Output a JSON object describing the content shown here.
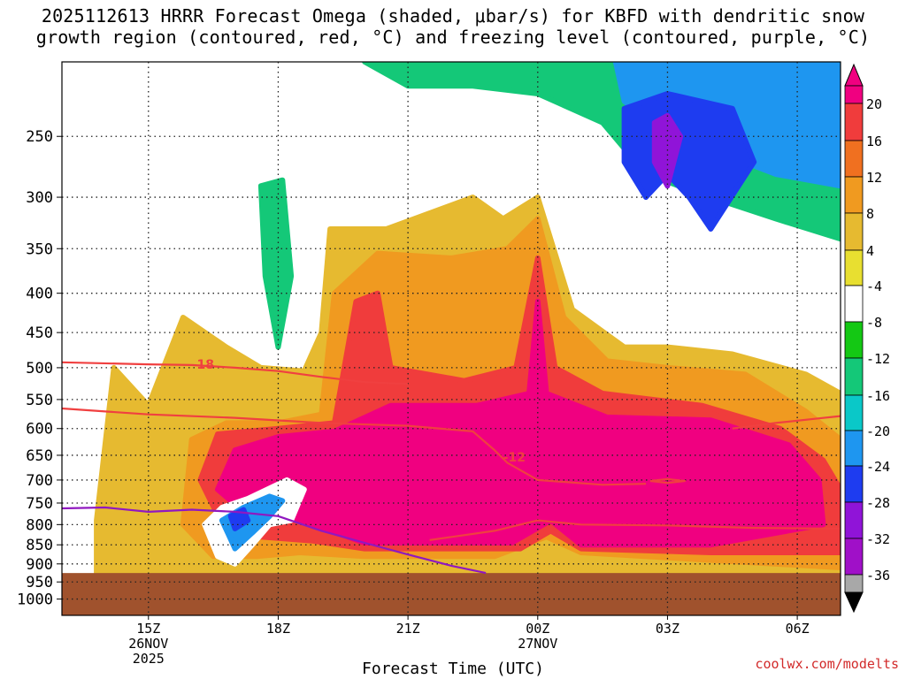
{
  "title_line1": "2025112613 HRRR Forecast Omega (shaded, μbar/s) for KBFD with dendritic snow",
  "title_line2": "growth region (contoured, red, °C) and freezing level (contoured, purple, °C)",
  "credit": "coolwx.com/modelts",
  "colors": {
    "ground": "#a0522d",
    "dendritic_contour": "#f04040",
    "freezing_contour": "#9018c0",
    "grid": "#222222"
  },
  "chart_data": {
    "type": "heatmap",
    "xlabel": "Forecast Time (UTC)",
    "ylabel": "",
    "y_scale": "log-pressure",
    "y_range": [
      1050,
      200
    ],
    "y_unit": "hPa",
    "x_range_hours": [
      13,
      31
    ],
    "y_ticks": [
      250,
      300,
      350,
      400,
      450,
      500,
      550,
      600,
      650,
      700,
      750,
      800,
      850,
      900,
      950,
      1000
    ],
    "x_ticks": [
      {
        "hour": 15,
        "label": "15Z",
        "sub": [
          "26NOV",
          "2025"
        ]
      },
      {
        "hour": 18,
        "label": "18Z",
        "sub": []
      },
      {
        "hour": 21,
        "label": "21Z",
        "sub": []
      },
      {
        "hour": 24,
        "label": "00Z",
        "sub": [
          "27NOV"
        ]
      },
      {
        "hour": 27,
        "label": "03Z",
        "sub": []
      },
      {
        "hour": 30,
        "label": "06Z",
        "sub": []
      }
    ],
    "colorbar": {
      "labels": [
        "20",
        "16",
        "12",
        "8",
        "4",
        "-4",
        "-8",
        "-12",
        "-16",
        "-20",
        "-24",
        "-28",
        "-32",
        "-36"
      ],
      "colors": [
        "#f00080",
        "#f03c3c",
        "#f07020",
        "#f09a20",
        "#e6ba30",
        "#e8df30",
        "#ffffff",
        "#14c814",
        "#14c878",
        "#0ac8c8",
        "#1e96f0",
        "#1e3cf0",
        "#9014d8",
        "#a010c8",
        "#a8a8a8",
        "#000000"
      ],
      "unit": "μbar/s"
    },
    "surface_pressure": 925,
    "contours": [
      {
        "name": "-18",
        "label": "-18",
        "color": "red",
        "points": [
          [
            13,
            492
          ],
          [
            15,
            495
          ],
          [
            16,
            496
          ],
          [
            17,
            500
          ],
          [
            18,
            505
          ],
          [
            19,
            514
          ],
          [
            20,
            522
          ],
          [
            21,
            525
          ]
        ]
      },
      {
        "name": "-12",
        "label": "-12",
        "color": "red",
        "points": [
          [
            13,
            565
          ],
          [
            14,
            570
          ],
          [
            15,
            575
          ],
          [
            17,
            581
          ],
          [
            19,
            590
          ],
          [
            21,
            595
          ],
          [
            22.5,
            605
          ],
          [
            23,
            640
          ],
          [
            23.3,
            665
          ],
          [
            24,
            700
          ],
          [
            25.5,
            710
          ],
          [
            26.5,
            708
          ]
        ]
      },
      {
        "name": "-12 (east)",
        "label": "",
        "color": "red",
        "points": [
          [
            28.5,
            600
          ],
          [
            29.5,
            590
          ],
          [
            30.5,
            582
          ],
          [
            31,
            578
          ]
        ]
      },
      {
        "name": "-12 (low)",
        "label": "",
        "color": "red",
        "points": [
          [
            21.5,
            838
          ],
          [
            23,
            815
          ],
          [
            24,
            790
          ],
          [
            25,
            800
          ],
          [
            27,
            802
          ],
          [
            29,
            808
          ],
          [
            31,
            810
          ]
        ]
      },
      {
        "name": "-12 (cell)",
        "label": "",
        "color": "red",
        "points": [
          [
            26.6,
            702
          ],
          [
            27,
            698
          ],
          [
            27.4,
            702
          ],
          [
            27,
            706
          ],
          [
            26.6,
            702
          ]
        ]
      },
      {
        "name": "0",
        "label": "",
        "color": "purple",
        "points": [
          [
            13,
            762
          ],
          [
            14,
            760
          ],
          [
            15,
            770
          ],
          [
            16,
            765
          ],
          [
            17,
            770
          ],
          [
            18,
            780
          ],
          [
            19,
            815
          ],
          [
            20,
            845
          ],
          [
            21,
            875
          ],
          [
            22,
            905
          ],
          [
            22.8,
            925
          ]
        ]
      }
    ],
    "omega_regions": [
      {
        "name": "green-upper",
        "value": -6,
        "points": [
          [
            13.8,
            200
          ],
          [
            16.5,
            200
          ],
          [
            17.5,
            260
          ],
          [
            18.8,
            310
          ],
          [
            20,
            340
          ],
          [
            22,
            335
          ],
          [
            23.5,
            320
          ],
          [
            25,
            335
          ],
          [
            26,
            350
          ],
          [
            28,
            380
          ],
          [
            30,
            380
          ],
          [
            31,
            390
          ],
          [
            31,
            200
          ],
          [
            19.2,
            200
          ],
          [
            19.0,
            260
          ],
          [
            17.8,
            280
          ],
          [
            17.2,
            230
          ],
          [
            15.5,
            240
          ],
          [
            14.5,
            270
          ],
          [
            14.0,
            300
          ],
          [
            13.8,
            200
          ]
        ]
      },
      {
        "name": "teal-upper",
        "value": -14,
        "points": [
          [
            20,
            200
          ],
          [
            31,
            200
          ],
          [
            31,
            340
          ],
          [
            29.5,
            320
          ],
          [
            28,
            300
          ],
          [
            26.5,
            280
          ],
          [
            25.5,
            240
          ],
          [
            24,
            220
          ],
          [
            22.5,
            215
          ],
          [
            21,
            215
          ],
          [
            20,
            200
          ]
        ]
      },
      {
        "name": "blue-upper",
        "value": -20,
        "points": [
          [
            25.8,
            200
          ],
          [
            31,
            200
          ],
          [
            31,
            290
          ],
          [
            29.5,
            280
          ],
          [
            28,
            260
          ],
          [
            27,
            250
          ],
          [
            26,
            225
          ],
          [
            25.8,
            200
          ]
        ]
      },
      {
        "name": "purple-upper",
        "value": -26,
        "points": [
          [
            26.0,
            230
          ],
          [
            27,
            220
          ],
          [
            28.5,
            230
          ],
          [
            29,
            270
          ],
          [
            28,
            330
          ],
          [
            27.5,
            300
          ],
          [
            27,
            280
          ],
          [
            26.5,
            300
          ],
          [
            26.0,
            270
          ],
          [
            26.0,
            230
          ]
        ]
      },
      {
        "name": "deep-purple-cell",
        "value": -30,
        "points": [
          [
            26.7,
            240
          ],
          [
            27,
            235
          ],
          [
            27.3,
            250
          ],
          [
            27,
            290
          ],
          [
            26.7,
            270
          ],
          [
            26.7,
            240
          ]
        ]
      },
      {
        "name": "green-tongue",
        "value": -6,
        "points": [
          [
            17.2,
            260
          ],
          [
            18.2,
            250
          ],
          [
            18.6,
            350
          ],
          [
            18.4,
            460
          ],
          [
            18.0,
            495
          ],
          [
            17.6,
            460
          ],
          [
            17.2,
            360
          ],
          [
            17.2,
            260
          ]
        ]
      },
      {
        "name": "teal-tongue",
        "value": -14,
        "points": [
          [
            17.6,
            290
          ],
          [
            18.1,
            285
          ],
          [
            18.3,
            380
          ],
          [
            18.0,
            470
          ],
          [
            17.7,
            380
          ],
          [
            17.6,
            290
          ]
        ]
      },
      {
        "name": "yellow-main",
        "value": 6,
        "points": [
          [
            13.8,
            790
          ],
          [
            14.2,
            500
          ],
          [
            15.0,
            560
          ],
          [
            15.8,
            430
          ],
          [
            16.8,
            470
          ],
          [
            17.6,
            500
          ],
          [
            18.6,
            505
          ],
          [
            19.0,
            450
          ],
          [
            19.2,
            330
          ],
          [
            20.5,
            330
          ],
          [
            22.5,
            300
          ],
          [
            23.2,
            320
          ],
          [
            24,
            300
          ],
          [
            24.8,
            420
          ],
          [
            26,
            470
          ],
          [
            27,
            470
          ],
          [
            28.5,
            480
          ],
          [
            30.2,
            510
          ],
          [
            31,
            540
          ],
          [
            31,
            925
          ],
          [
            13.8,
            925
          ],
          [
            13.8,
            790
          ]
        ]
      },
      {
        "name": "orange-main",
        "value": 10,
        "points": [
          [
            15.8,
            800
          ],
          [
            16.0,
            620
          ],
          [
            16.8,
            590
          ],
          [
            18,
            590
          ],
          [
            19,
            575
          ],
          [
            19.3,
            400
          ],
          [
            20.3,
            355
          ],
          [
            22,
            360
          ],
          [
            23.3,
            350
          ],
          [
            24,
            320
          ],
          [
            24.6,
            430
          ],
          [
            25.6,
            490
          ],
          [
            27,
            500
          ],
          [
            28.8,
            510
          ],
          [
            30.2,
            570
          ],
          [
            31,
            620
          ],
          [
            31,
            910
          ],
          [
            28,
            890
          ],
          [
            25,
            870
          ],
          [
            24.2,
            830
          ],
          [
            23,
            880
          ],
          [
            20,
            880
          ],
          [
            18.5,
            870
          ],
          [
            17.5,
            880
          ],
          [
            16.5,
            880
          ],
          [
            15.8,
            800
          ]
        ]
      },
      {
        "name": "red-main",
        "value": 18,
        "points": [
          [
            16.2,
            700
          ],
          [
            16.6,
            610
          ],
          [
            18,
            600
          ],
          [
            19.3,
            590
          ],
          [
            19.8,
            410
          ],
          [
            20.3,
            400
          ],
          [
            20.6,
            500
          ],
          [
            22.3,
            520
          ],
          [
            23.5,
            500
          ],
          [
            24,
            360
          ],
          [
            24.4,
            500
          ],
          [
            25.5,
            540
          ],
          [
            27.8,
            560
          ],
          [
            29.6,
            600
          ],
          [
            30.6,
            660
          ],
          [
            31,
            720
          ],
          [
            31,
            870
          ],
          [
            28,
            870
          ],
          [
            25,
            860
          ],
          [
            24.3,
            815
          ],
          [
            23.6,
            860
          ],
          [
            20,
            860
          ],
          [
            18.8,
            840
          ],
          [
            17.6,
            830
          ],
          [
            16.8,
            820
          ],
          [
            16.2,
            700
          ]
        ]
      },
      {
        "name": "magenta-main",
        "value": 22,
        "points": [
          [
            16.6,
            720
          ],
          [
            17.0,
            640
          ],
          [
            18,
            615
          ],
          [
            19.3,
            605
          ],
          [
            20.6,
            560
          ],
          [
            22.6,
            560
          ],
          [
            23.8,
            540
          ],
          [
            24,
            410
          ],
          [
            24.2,
            540
          ],
          [
            25.6,
            580
          ],
          [
            28,
            585
          ],
          [
            29.8,
            630
          ],
          [
            30.5,
            700
          ],
          [
            30.6,
            800
          ],
          [
            28,
            850
          ],
          [
            25,
            850
          ],
          [
            24.3,
            790
          ],
          [
            23.4,
            845
          ],
          [
            20,
            845
          ],
          [
            18.8,
            800
          ],
          [
            17.8,
            770
          ],
          [
            17.2,
            770
          ],
          [
            16.6,
            720
          ]
        ]
      },
      {
        "name": "green-low",
        "value": -6,
        "points": [
          [
            16.3,
            800
          ],
          [
            16.7,
            760
          ],
          [
            17.3,
            740
          ],
          [
            18.2,
            700
          ],
          [
            18.6,
            720
          ],
          [
            18.3,
            790
          ],
          [
            17.8,
            800
          ],
          [
            17.4,
            850
          ],
          [
            17.0,
            900
          ],
          [
            16.6,
            880
          ],
          [
            16.3,
            800
          ]
        ]
      },
      {
        "name": "blue-low",
        "value": -22,
        "points": [
          [
            16.7,
            790
          ],
          [
            17.2,
            760
          ],
          [
            17.8,
            735
          ],
          [
            18.1,
            745
          ],
          [
            17.8,
            780
          ],
          [
            17.4,
            820
          ],
          [
            17.0,
            860
          ],
          [
            16.7,
            790
          ]
        ]
      },
      {
        "name": "purple-low",
        "value": -26,
        "points": [
          [
            16.9,
            780
          ],
          [
            17.2,
            765
          ],
          [
            17.3,
            790
          ],
          [
            17.0,
            810
          ],
          [
            16.9,
            780
          ]
        ]
      }
    ]
  }
}
